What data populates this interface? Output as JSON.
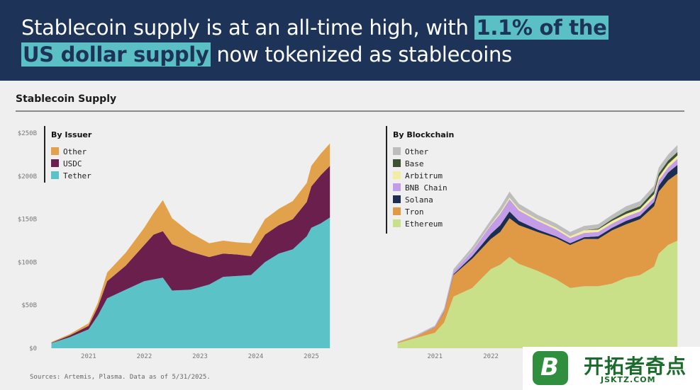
{
  "header": {
    "line1_plain": "Stablecoin supply is at an all-time high, with ",
    "line1_highlight": "1.1% of the",
    "line2_highlight": "US dollar supply",
    "line2_plain": " now tokenized as stablecoins"
  },
  "section_title": "Stablecoin Supply",
  "source": "Sources: Artemis, Plasma. Data as of 5/31/2025.",
  "watermark": {
    "logo_letter": "B",
    "cn": "开拓者奇点",
    "en": "JSKTZ.COM"
  },
  "chart_data": [
    {
      "type": "area",
      "stacked": true,
      "legend_title": "By Issuer",
      "legend_position": "top-left",
      "y_ticks": [
        "$250B",
        "$200B",
        "$150B",
        "$100B",
        "$50B",
        "$0"
      ],
      "ylim": [
        0,
        250
      ],
      "x_ticks": [
        "2021",
        "2022",
        "2023",
        "2024",
        "2025"
      ],
      "x": [
        "2020-05",
        "2020-09",
        "2021-01",
        "2021-03",
        "2021-05",
        "2021-09",
        "2022-01",
        "2022-03",
        "2022-05",
        "2022-07",
        "2022-11",
        "2023-03",
        "2023-06",
        "2023-09",
        "2023-12",
        "2024-03",
        "2024-06",
        "2024-09",
        "2024-12",
        "2025-01",
        "2025-03",
        "2025-05"
      ],
      "series": [
        {
          "name": "Tether",
          "color": "#5bc2c8",
          "values": [
            6,
            13,
            22,
            38,
            58,
            68,
            78,
            80,
            82,
            67,
            68,
            74,
            83,
            84,
            85,
            100,
            110,
            115,
            130,
            140,
            145,
            152
          ]
        },
        {
          "name": "USDC",
          "color": "#6b1f4d",
          "values": [
            0.4,
            2,
            4,
            10,
            20,
            28,
            42,
            52,
            54,
            54,
            44,
            32,
            27,
            25,
            22,
            32,
            33,
            35,
            40,
            48,
            56,
            60
          ]
        },
        {
          "name": "Other",
          "color": "#e2a24c",
          "values": [
            0.8,
            1.5,
            3,
            5,
            10,
            15,
            20,
            25,
            36,
            30,
            22,
            16,
            15,
            14,
            15,
            18,
            19,
            21,
            22,
            24,
            25,
            26
          ]
        }
      ]
    },
    {
      "type": "area",
      "stacked": true,
      "legend_title": "By Blockchain",
      "legend_position": "top-left",
      "y_ticks": [],
      "x_ticks": [
        "2021",
        "2022"
      ],
      "x": [
        "2020-05",
        "2020-09",
        "2021-01",
        "2021-03",
        "2021-05",
        "2021-09",
        "2022-01",
        "2022-03",
        "2022-05",
        "2022-07",
        "2022-11",
        "2023-03",
        "2023-06",
        "2023-09",
        "2023-12",
        "2024-03",
        "2024-06",
        "2024-09",
        "2024-12",
        "2025-01",
        "2025-03",
        "2025-05"
      ],
      "series": [
        {
          "name": "Ethereum",
          "color": "#c9df88",
          "values": [
            6,
            12,
            18,
            30,
            60,
            70,
            92,
            97,
            106,
            98,
            90,
            80,
            70,
            72,
            72,
            75,
            82,
            85,
            95,
            110,
            120,
            125
          ]
        },
        {
          "name": "Tron",
          "color": "#e09a45",
          "values": [
            1,
            2,
            6,
            12,
            25,
            34,
            35,
            38,
            45,
            45,
            45,
            48,
            50,
            55,
            55,
            62,
            62,
            65,
            70,
            72,
            75,
            78
          ]
        },
        {
          "name": "Solana",
          "color": "#1b2e4f",
          "values": [
            0,
            0,
            0.3,
            0.5,
            1,
            3,
            6,
            8,
            8,
            5,
            3,
            2,
            2,
            2,
            3,
            3,
            4,
            4,
            5,
            7,
            9,
            10
          ]
        },
        {
          "name": "BNB Chain",
          "color": "#c39de8",
          "values": [
            0,
            0.5,
            1,
            2,
            3,
            6,
            10,
            13,
            14,
            12,
            10,
            8,
            6,
            5,
            5,
            5,
            5,
            5,
            5,
            6,
            6,
            7
          ]
        },
        {
          "name": "Arbitrum",
          "color": "#f3eda3",
          "values": [
            0,
            0,
            0,
            0,
            0,
            0.5,
            1,
            2,
            2,
            2,
            2,
            2,
            2,
            3,
            3,
            3,
            3,
            3,
            4,
            4,
            4,
            4
          ]
        },
        {
          "name": "Base",
          "color": "#3c5230",
          "values": [
            0,
            0,
            0,
            0,
            0,
            0,
            0,
            0,
            0,
            0,
            0,
            0,
            0,
            0,
            1,
            2,
            3,
            3,
            4,
            4,
            4,
            4
          ]
        },
        {
          "name": "Other",
          "color": "#bdbdbd",
          "values": [
            0.5,
            1,
            1,
            2,
            3,
            4,
            5,
            6,
            7,
            6,
            5,
            5,
            5,
            5,
            5,
            5,
            6,
            6,
            6,
            7,
            7,
            8
          ]
        }
      ]
    }
  ]
}
